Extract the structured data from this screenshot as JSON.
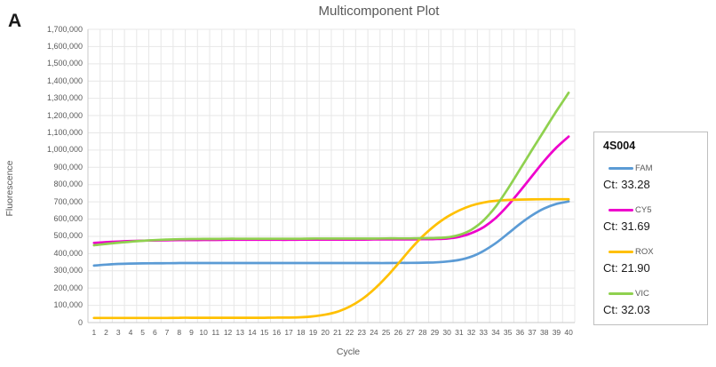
{
  "panel_label": "A",
  "chart": {
    "title": "Multicomponent Plot",
    "xlabel": "Cycle",
    "ylabel": "Fluorescence"
  },
  "legend": {
    "title": "4S004"
  },
  "colors": {
    "grid": "#E7E7E7",
    "axis": "#C8C8C8",
    "tick_text": "#595959",
    "legend_border": "#BFBFBF",
    "fam": "#5B9BD5",
    "cy5": "#EE00CC",
    "rox": "#FFC000",
    "vic": "#8FD14F"
  },
  "chart_data": {
    "type": "line",
    "title": "Multicomponent Plot",
    "xlabel": "Cycle",
    "ylabel": "Fluorescence",
    "ylim": [
      0,
      1700000
    ],
    "ytick_step": 100000,
    "grid": true,
    "legend_position": "right",
    "legend_title": "4S004",
    "x": [
      1,
      2,
      3,
      4,
      5,
      6,
      7,
      8,
      9,
      10,
      11,
      12,
      13,
      14,
      15,
      16,
      17,
      18,
      19,
      20,
      21,
      22,
      23,
      24,
      25,
      26,
      27,
      28,
      29,
      30,
      31,
      32,
      33,
      34,
      35,
      36,
      37,
      38,
      39,
      40
    ],
    "yticklabels": [
      "0",
      "100,000",
      "200,000",
      "300,000",
      "400,000",
      "500,000",
      "600,000",
      "700,000",
      "800,000",
      "900,000",
      "1,000,000",
      "1,100,000",
      "1,200,000",
      "1,300,000",
      "1,400,000",
      "1,500,000",
      "1,600,000",
      "1,700,000"
    ],
    "series": [
      {
        "name": "FAM",
        "color": "#5B9BD5",
        "ct": "33.28",
        "ct_label": "Ct: 33.28",
        "values": [
          330000,
          336000,
          340000,
          342000,
          343000,
          344000,
          344000,
          345000,
          345000,
          345000,
          345000,
          345000,
          345000,
          345000,
          345000,
          345000,
          345000,
          345000,
          345000,
          345000,
          345000,
          345000,
          345000,
          345000,
          345000,
          346000,
          346000,
          347000,
          349000,
          354000,
          363000,
          382000,
          415000,
          460000,
          515000,
          572000,
          622000,
          662000,
          688000,
          702000
        ]
      },
      {
        "name": "CY5",
        "color": "#EE00CC",
        "ct": "31.69",
        "ct_label": "Ct: 31.69",
        "values": [
          462000,
          466000,
          470000,
          473000,
          475000,
          476000,
          477000,
          478000,
          478000,
          479000,
          479000,
          480000,
          480000,
          480000,
          480000,
          480000,
          480000,
          481000,
          481000,
          481000,
          481000,
          481000,
          481000,
          482000,
          482000,
          482000,
          482000,
          483000,
          484000,
          487000,
          497000,
          518000,
          553000,
          606000,
          678000,
          762000,
          850000,
          938000,
          1015000,
          1078000
        ]
      },
      {
        "name": "ROX",
        "color": "#FFC000",
        "ct": "21.90",
        "ct_label": "Ct: 21.90",
        "values": [
          27000,
          27000,
          27000,
          27000,
          27000,
          27000,
          27000,
          28000,
          28000,
          28000,
          28000,
          28000,
          28000,
          28000,
          28000,
          29000,
          29000,
          31000,
          36000,
          46000,
          63000,
          92000,
          135000,
          192000,
          262000,
          342000,
          425000,
          500000,
          562000,
          612000,
          650000,
          678000,
          696000,
          706000,
          711000,
          713000,
          714000,
          715000,
          715000,
          715000
        ]
      },
      {
        "name": "VIC",
        "color": "#8FD14F",
        "ct": "32.03",
        "ct_label": "Ct: 32.03",
        "values": [
          448000,
          456000,
          463000,
          469000,
          474000,
          478000,
          481000,
          483000,
          484000,
          485000,
          485000,
          486000,
          486000,
          486000,
          486000,
          486000,
          486000,
          486000,
          487000,
          487000,
          487000,
          487000,
          487000,
          487000,
          488000,
          488000,
          488000,
          489000,
          490000,
          494000,
          508000,
          538000,
          592000,
          672000,
          775000,
          888000,
          1002000,
          1115000,
          1226000,
          1332000
        ]
      }
    ]
  }
}
